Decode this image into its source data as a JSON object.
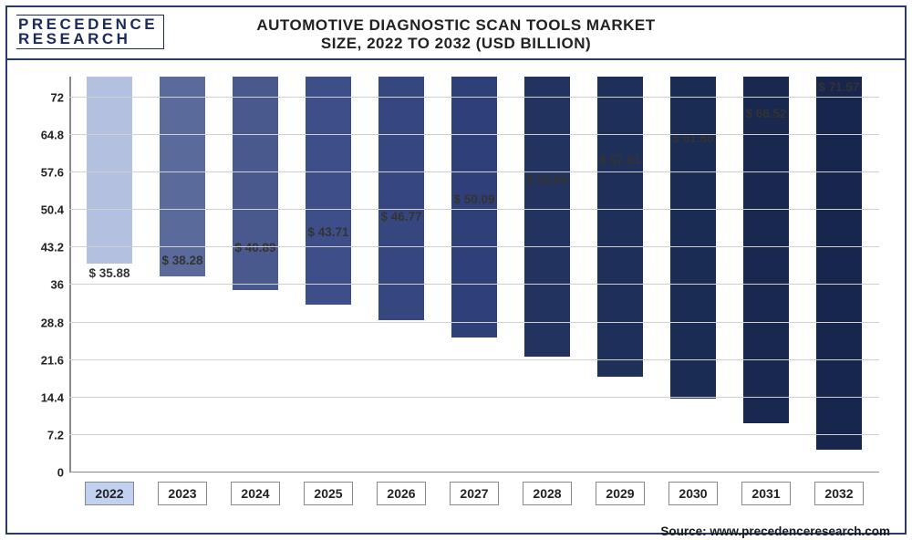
{
  "logo": {
    "line1": "PRECEDENCE",
    "line2": "RESEARCH"
  },
  "title": {
    "line1": "AUTOMOTIVE DIAGNOSTIC SCAN TOOLS MARKET",
    "line2": "SIZE, 2022 TO 2032 (USD BILLION)"
  },
  "chart": {
    "type": "bar",
    "categories": [
      "2022",
      "2023",
      "2024",
      "2025",
      "2026",
      "2027",
      "2028",
      "2029",
      "2030",
      "2031",
      "2032"
    ],
    "values": [
      35.88,
      38.28,
      40.89,
      43.71,
      46.77,
      50.09,
      53.69,
      57.61,
      61.88,
      66.52,
      71.57
    ],
    "bar_colors": [
      "#b3c0df",
      "#5a6a9a",
      "#49598e",
      "#3e4e88",
      "#36477f",
      "#2f4078",
      "#22335f",
      "#1e2f59",
      "#1a2b54",
      "#18284f",
      "#16264c"
    ],
    "highlight_index": 0,
    "ylim": [
      0,
      76
    ],
    "yticks": [
      0,
      7.2,
      14.4,
      21.6,
      28.8,
      36,
      43.2,
      50.4,
      57.6,
      64.8,
      72
    ],
    "ytick_labels": [
      "0",
      "7.2",
      "14.4",
      "21.6",
      "28.8",
      "36",
      "43.2",
      "50.4",
      "57.6",
      "64.8",
      "72"
    ],
    "value_prefix": "$ ",
    "title_fontsize": 17,
    "label_fontsize": 13,
    "grid_color": "#d0d0d0",
    "axis_color": "#888888",
    "background_color": "#ffffff"
  },
  "source": "Source: www.precedenceresearch.com"
}
